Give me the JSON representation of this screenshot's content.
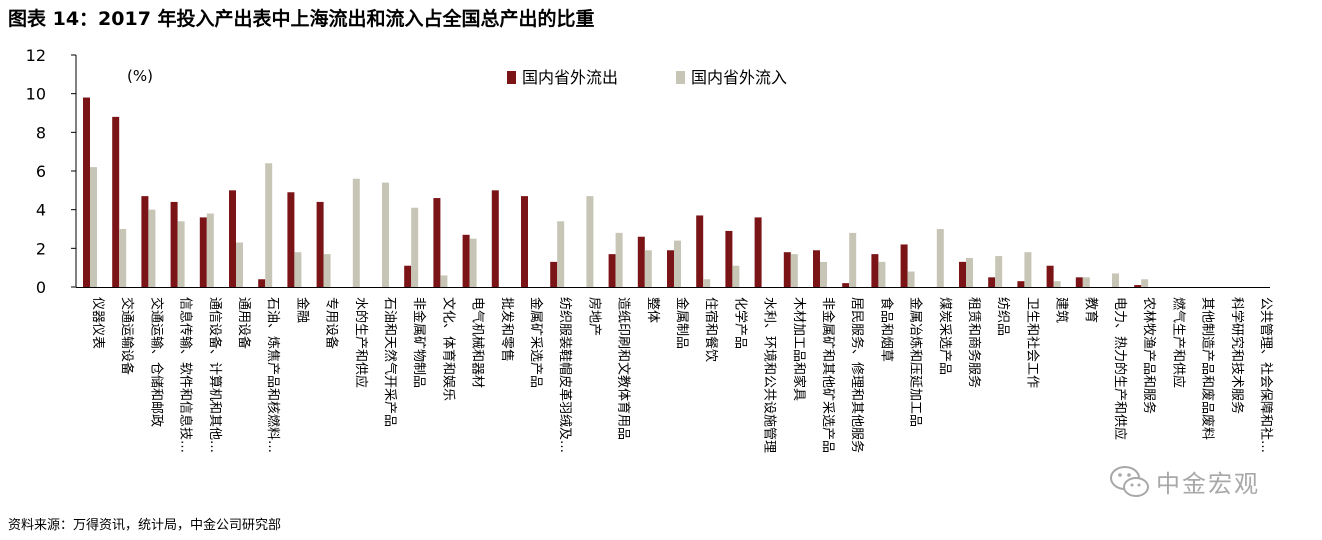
{
  "title": "图表 14：2017 年投入产出表中上海流出和流入占全国总产出的比重",
  "source": "资料来源：万得资讯，统计局，中金公司研究部",
  "watermark": "中金宏观",
  "colors": {
    "outflow": "#7b1416",
    "inflow": "#c7c6b6"
  },
  "chart_data": {
    "type": "bar",
    "unit_label": "(%)",
    "ylim": [
      0,
      12
    ],
    "yticks": [
      0,
      2,
      4,
      6,
      8,
      10,
      12
    ],
    "grid": false,
    "legend_position": "top-center",
    "categories": [
      "仪器仪表",
      "交通运输设备",
      "交通运输、仓储和邮政",
      "信息传输、软件和信息技…",
      "通信设备、计算机和其他…",
      "通用设备",
      "石油、炼焦产品和核燃料…",
      "金融",
      "专用设备",
      "水的生产和供应",
      "石油和天然气开采产品",
      "非金属矿物制品",
      "文化、体育和娱乐",
      "电气机械和器材",
      "批发和零售",
      "金属矿采选产品",
      "纺织服装鞋帽皮革羽绒及…",
      "房地产",
      "造纸印刷和文教体育用品",
      "整体",
      "金属制品",
      "住宿和餐饮",
      "化学产品",
      "水利、环境和公共设施管理",
      "木材加工品和家具",
      "非金属矿和其他矿采选产品",
      "居民服务、修理和其他服务",
      "食品和烟草",
      "金属冶炼和压延加工品",
      "煤炭采选产品",
      "租赁和商务服务",
      "纺织品",
      "卫生和社会工作",
      "建筑",
      "教育",
      "电力、热力的生产和供应",
      "农林牧渔产品和服务",
      "燃气生产和供应",
      "其他制造产品和废品废料",
      "科学研究和技术服务",
      "公共管理、社会保障和社…"
    ],
    "series": [
      {
        "name": "国内省外流出",
        "values": [
          9.8,
          8.8,
          4.7,
          4.4,
          3.6,
          5.0,
          0.4,
          4.9,
          4.4,
          0.0,
          0.0,
          1.1,
          4.6,
          2.7,
          5.0,
          4.7,
          1.3,
          0.0,
          1.7,
          2.6,
          1.9,
          3.7,
          2.9,
          3.6,
          1.8,
          1.9,
          0.2,
          1.7,
          2.2,
          0.0,
          1.3,
          0.5,
          0.3,
          1.1,
          0.5,
          0.0,
          0.1,
          0.0,
          0.0,
          0.0,
          0.0
        ]
      },
      {
        "name": "国内省外流入",
        "values": [
          6.2,
          3.0,
          4.0,
          3.4,
          3.8,
          2.3,
          6.4,
          1.8,
          1.7,
          5.6,
          5.4,
          4.1,
          0.6,
          2.5,
          0.0,
          0.0,
          3.4,
          4.7,
          2.8,
          1.9,
          2.4,
          0.4,
          1.1,
          0.0,
          1.7,
          1.3,
          2.8,
          1.3,
          0.8,
          3.0,
          1.5,
          1.6,
          1.8,
          0.3,
          0.5,
          0.7,
          0.4,
          0.0,
          0.0,
          0.0,
          0.0
        ]
      }
    ]
  }
}
